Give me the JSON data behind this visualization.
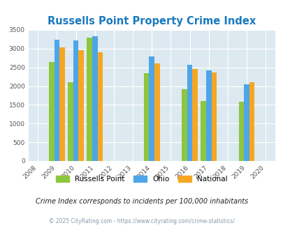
{
  "title": "Russells Point Property Crime Index",
  "all_years": [
    2008,
    2009,
    2010,
    2011,
    2012,
    2013,
    2014,
    2015,
    2016,
    2017,
    2018,
    2019,
    2020
  ],
  "data_years": [
    2009,
    2010,
    2011,
    2014,
    2016,
    2017,
    2019
  ],
  "russells_point": [
    2650,
    2100,
    3300,
    2350,
    1920,
    1600,
    1590
  ],
  "ohio": [
    3240,
    3220,
    3330,
    2800,
    2570,
    2420,
    2050
  ],
  "national": [
    3030,
    2950,
    2900,
    2600,
    2460,
    2370,
    2110
  ],
  "color_russells": "#8dc63f",
  "color_ohio": "#4da6e8",
  "color_national": "#f5a623",
  "ylim": [
    0,
    3500
  ],
  "yticks": [
    0,
    500,
    1000,
    1500,
    2000,
    2500,
    3000,
    3500
  ],
  "background_color": "#dce9f0",
  "grid_color": "#ffffff",
  "title_color": "#1a7abf",
  "title_fontsize": 10.5,
  "legend_labels": [
    "Russells Point",
    "Ohio",
    "National"
  ],
  "footnote1": "Crime Index corresponds to incidents per 100,000 inhabitants",
  "footnote2": "© 2025 CityRating.com - https://www.cityrating.com/crime-statistics/",
  "bar_width": 0.28
}
